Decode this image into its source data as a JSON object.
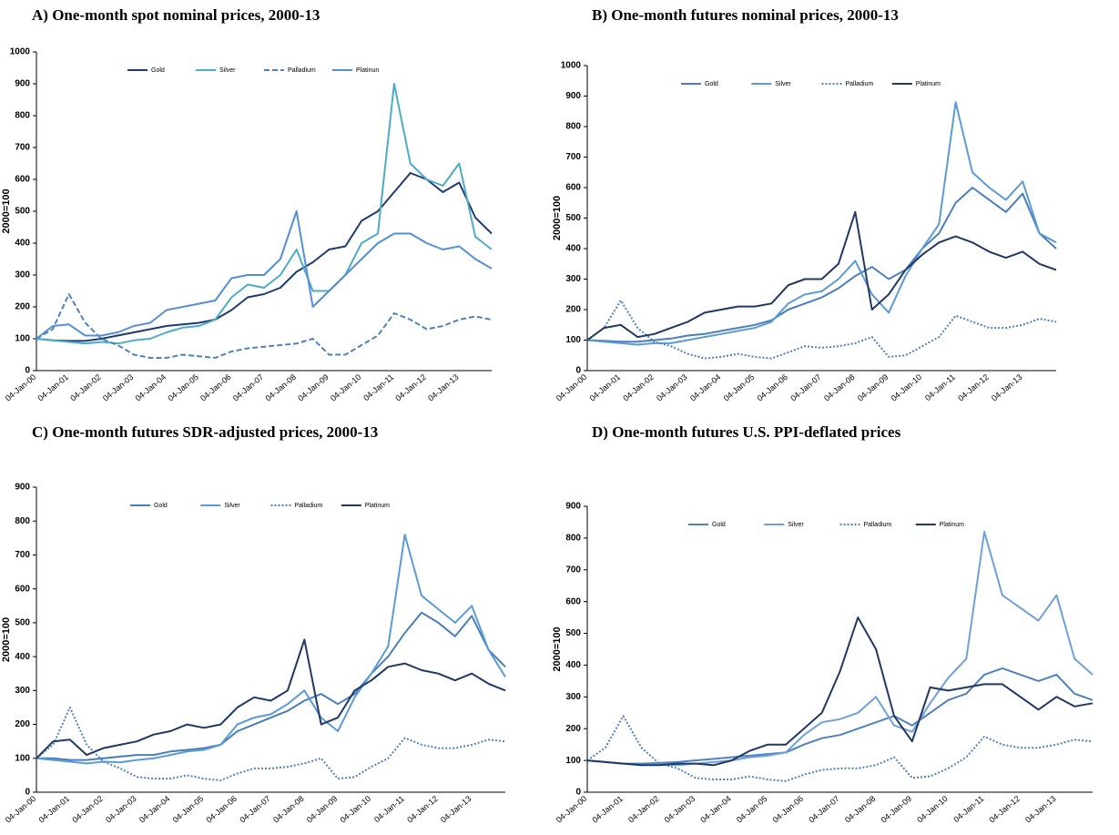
{
  "chart_data": [
    {
      "type": "line",
      "title": "A) One-month spot nominal prices, 2000-13",
      "ylabel": "2000=100",
      "categories": [
        "04-Jan-00",
        null,
        "04-Jan-01",
        null,
        "04-Jan-02",
        null,
        "04-Jan-03",
        null,
        "04-Jan-04",
        null,
        "04-Jan-05",
        null,
        "04-Jan-06",
        null,
        "04-Jan-07",
        null,
        "04-Jan-08",
        null,
        "04-Jan-09",
        null,
        "04-Jan-10",
        null,
        "04-Jan-11",
        null,
        "04-Jan-12",
        null,
        "04-Jan-13",
        null,
        null
      ],
      "ylim": [
        0,
        1000
      ],
      "yticks": [
        0,
        100,
        200,
        300,
        400,
        500,
        600,
        700,
        800,
        900,
        1000
      ],
      "legend": "top",
      "series": [
        {
          "name": "Gold",
          "color": "#1f3a6e",
          "style": "solid",
          "values": [
            100,
            95,
            93,
            93,
            100,
            110,
            120,
            130,
            140,
            145,
            150,
            160,
            190,
            230,
            240,
            260,
            310,
            340,
            380,
            390,
            470,
            500,
            560,
            620,
            600,
            560,
            590,
            480,
            430
          ]
        },
        {
          "name": "Silver",
          "color": "#4bacc6",
          "style": "solid",
          "values": [
            100,
            95,
            90,
            85,
            90,
            85,
            95,
            100,
            120,
            135,
            140,
            160,
            230,
            270,
            260,
            300,
            380,
            250,
            250,
            300,
            400,
            430,
            900,
            650,
            600,
            580,
            650,
            420,
            380
          ]
        },
        {
          "name": "Palladium",
          "color": "#4f81bd",
          "style": "dashed",
          "values": [
            100,
            130,
            240,
            150,
            100,
            80,
            50,
            40,
            40,
            50,
            45,
            40,
            60,
            70,
            75,
            80,
            85,
            100,
            50,
            50,
            80,
            110,
            180,
            160,
            130,
            140,
            160,
            170,
            160
          ]
        },
        {
          "name": "Platinun",
          "color": "#558ed5",
          "style": "solid",
          "values": [
            100,
            140,
            145,
            110,
            110,
            120,
            140,
            150,
            190,
            200,
            210,
            220,
            290,
            300,
            300,
            350,
            500,
            200,
            250,
            300,
            350,
            400,
            430,
            430,
            400,
            380,
            390,
            350,
            320
          ]
        }
      ]
    },
    {
      "type": "line",
      "title": "B) One-month futures nominal prices, 2000-13",
      "ylabel": "2000=100",
      "categories": [
        "04-Jan-00",
        null,
        "04-Jan-01",
        null,
        "04-Jan-02",
        null,
        "04-Jan-03",
        null,
        "04-Jan-04",
        null,
        "04-Jan-05",
        null,
        "04-Jan-06",
        null,
        "04-Jan-07",
        null,
        "04-Jan-08",
        null,
        "04-Jan-09",
        null,
        "04-Jan-10",
        null,
        "04-Jan-11",
        null,
        "04-Jan-12",
        null,
        "04-Jan-13",
        null,
        null
      ],
      "ylim": [
        0,
        1000
      ],
      "yticks": [
        0,
        100,
        200,
        300,
        400,
        500,
        600,
        700,
        800,
        900,
        1000
      ],
      "legend": "top",
      "series": [
        {
          "name": "Gold",
          "color": "#4a7ebb",
          "style": "solid",
          "values": [
            100,
            98,
            95,
            95,
            100,
            105,
            115,
            120,
            130,
            140,
            150,
            165,
            200,
            220,
            240,
            270,
            310,
            340,
            300,
            330,
            400,
            450,
            550,
            600,
            560,
            520,
            580,
            450,
            400
          ]
        },
        {
          "name": "Silver",
          "color": "#5b9bd5",
          "style": "solid",
          "values": [
            100,
            95,
            90,
            85,
            90,
            90,
            100,
            110,
            120,
            130,
            140,
            160,
            220,
            250,
            260,
            300,
            360,
            250,
            190,
            310,
            400,
            480,
            880,
            650,
            600,
            560,
            620,
            450,
            420
          ]
        },
        {
          "name": "Palladium",
          "color": "#4f81bd",
          "style": "dotted",
          "values": [
            100,
            140,
            230,
            140,
            95,
            80,
            55,
            40,
            45,
            55,
            45,
            40,
            60,
            80,
            75,
            80,
            90,
            110,
            45,
            50,
            80,
            110,
            180,
            160,
            140,
            140,
            150,
            170,
            160
          ]
        },
        {
          "name": "Platinum",
          "color": "#1f3864",
          "style": "solid",
          "values": [
            100,
            140,
            150,
            110,
            120,
            140,
            160,
            190,
            200,
            210,
            210,
            220,
            280,
            300,
            300,
            350,
            520,
            200,
            250,
            330,
            380,
            420,
            440,
            420,
            390,
            370,
            390,
            350,
            330
          ]
        }
      ]
    },
    {
      "type": "line",
      "title": "C) One-month futures SDR-adjusted prices, 2000-13",
      "ylabel": "2000=100",
      "categories": [
        "04-Jan-00",
        null,
        "04-Jan-01",
        null,
        "04-Jan-02",
        null,
        "04-Jan-03",
        null,
        "04-Jan-04",
        null,
        "04-Jan-05",
        null,
        "04-Jan-06",
        null,
        "04-Jan-07",
        null,
        "04-Jan-08",
        null,
        "04-Jan-09",
        null,
        "04-Jan-10",
        null,
        "04-Jan-11",
        null,
        "04-Jan-12",
        null,
        "04-Jan-13",
        null,
        null
      ],
      "ylim": [
        0,
        900
      ],
      "yticks": [
        0,
        100,
        200,
        300,
        400,
        500,
        600,
        700,
        800,
        900
      ],
      "legend": "top",
      "series": [
        {
          "name": "Gold",
          "color": "#4a7ebb",
          "style": "solid",
          "values": [
            100,
            100,
            95,
            95,
            100,
            105,
            110,
            110,
            120,
            125,
            130,
            140,
            180,
            200,
            220,
            240,
            270,
            290,
            260,
            290,
            350,
            400,
            470,
            530,
            500,
            460,
            520,
            420,
            370
          ]
        },
        {
          "name": "Silver",
          "color": "#5b9bd5",
          "style": "solid",
          "values": [
            100,
            95,
            90,
            85,
            90,
            88,
            95,
            100,
            110,
            120,
            125,
            140,
            200,
            220,
            230,
            260,
            300,
            220,
            180,
            280,
            350,
            430,
            760,
            580,
            540,
            500,
            550,
            420,
            340
          ]
        },
        {
          "name": "Palladium",
          "color": "#4f81bd",
          "style": "dotted",
          "values": [
            100,
            140,
            250,
            140,
            90,
            70,
            45,
            40,
            40,
            50,
            40,
            35,
            55,
            70,
            70,
            75,
            85,
            100,
            40,
            45,
            75,
            100,
            160,
            140,
            130,
            130,
            140,
            155,
            150
          ]
        },
        {
          "name": "Platinum",
          "color": "#1f3864",
          "style": "solid",
          "values": [
            100,
            150,
            155,
            110,
            130,
            140,
            150,
            170,
            180,
            200,
            190,
            200,
            250,
            280,
            270,
            300,
            450,
            200,
            220,
            300,
            330,
            370,
            380,
            360,
            350,
            330,
            350,
            320,
            300
          ]
        }
      ]
    },
    {
      "type": "line",
      "title": "D) One-month futures U.S. PPI-deflated prices",
      "ylabel": "2000=100",
      "categories": [
        "04-Jan-00",
        null,
        "04-Jan-01",
        null,
        "04-Jan-02",
        null,
        "04-Jan-03",
        null,
        "04-Jan-04",
        null,
        "04-Jan-05",
        null,
        "04-Jan-06",
        null,
        "04-Jan-07",
        null,
        "04-Jan-08",
        null,
        "04-Jan-09",
        null,
        "04-Jan-10",
        null,
        "04-Jan-11",
        null,
        "04-Jan-12",
        null,
        "04-Jan-13",
        null,
        null
      ],
      "ylim": [
        0,
        900
      ],
      "yticks": [
        0,
        100,
        200,
        300,
        400,
        500,
        600,
        700,
        800,
        900
      ],
      "legend": "top",
      "series": [
        {
          "name": "Gold",
          "color": "#4f81bd",
          "style": "solid",
          "values": [
            100,
            95,
            90,
            90,
            92,
            95,
            100,
            105,
            110,
            115,
            120,
            125,
            150,
            170,
            180,
            200,
            220,
            240,
            210,
            250,
            290,
            310,
            370,
            390,
            370,
            350,
            370,
            310,
            290
          ]
        },
        {
          "name": "Silver",
          "color": "#6fa0dc",
          "style": "solid",
          "values": [
            100,
            95,
            90,
            85,
            88,
            85,
            90,
            95,
            100,
            110,
            115,
            125,
            180,
            220,
            230,
            250,
            300,
            210,
            190,
            280,
            360,
            420,
            820,
            620,
            580,
            540,
            620,
            420,
            370
          ]
        },
        {
          "name": "Palladium",
          "color": "#4f81bd",
          "style": "dotted",
          "values": [
            100,
            140,
            240,
            140,
            90,
            75,
            45,
            40,
            40,
            50,
            40,
            35,
            55,
            70,
            75,
            75,
            85,
            110,
            45,
            50,
            75,
            110,
            175,
            150,
            140,
            140,
            150,
            165,
            160
          ]
        },
        {
          "name": "Platinum",
          "color": "#1f3864",
          "style": "solid",
          "values": [
            100,
            95,
            90,
            85,
            85,
            90,
            90,
            85,
            100,
            130,
            150,
            150,
            200,
            250,
            380,
            550,
            450,
            240,
            160,
            330,
            320,
            330,
            340,
            340,
            300,
            260,
            300,
            270,
            280
          ]
        }
      ]
    }
  ]
}
